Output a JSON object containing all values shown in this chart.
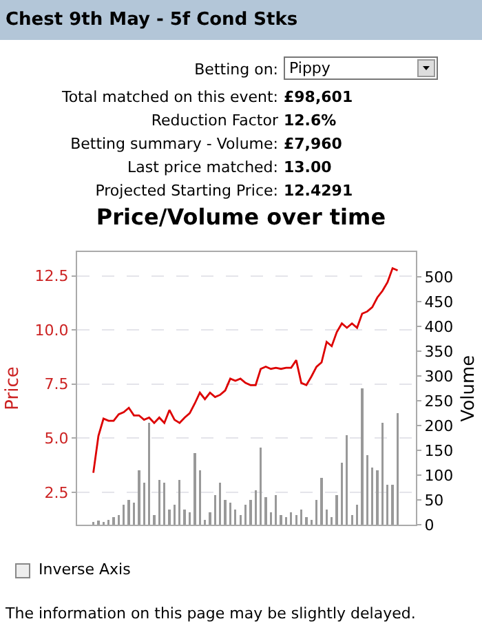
{
  "chart_data": {
    "type": "line",
    "title": "Price/Volume over time",
    "ylabel": "Price",
    "y2label": "Volume",
    "annotations": [
      "Chest 9th May - 5f Cond Stks",
      "Betting on:",
      "Pippy",
      "Total matched on this event:",
      "£98,601",
      "Reduction Factor",
      "12.6%",
      "Betting summary - Volume:",
      "£7,960",
      "Last price matched:",
      "13.00",
      "Projected Starting Price:",
      "12.4291",
      "Inverse Axis",
      "The information on this page may be slightly delayed."
    ],
    "categories": [
      null,
      null,
      null,
      null,
      null,
      null,
      null,
      null,
      null,
      null,
      null,
      null,
      null,
      null,
      null,
      null,
      null,
      null,
      null,
      null,
      null,
      null,
      null,
      null,
      null,
      null,
      null,
      null,
      null,
      null,
      null,
      null,
      null,
      null,
      null,
      null,
      null,
      null,
      null,
      null,
      null,
      null,
      null,
      null,
      null,
      null,
      null,
      null,
      null,
      null,
      null,
      null,
      null,
      null,
      null,
      null,
      null,
      null,
      null,
      null,
      null
    ],
    "series": [
      {
        "type": "bar",
        "axis": "y2",
        "color": "#999999",
        "values": [
          5,
          8,
          5,
          10,
          15,
          20,
          40,
          50,
          45,
          110,
          85,
          205,
          20,
          90,
          85,
          30,
          40,
          90,
          30,
          25,
          145,
          110,
          10,
          25,
          60,
          85,
          50,
          45,
          30,
          20,
          40,
          50,
          70,
          155,
          55,
          25,
          60,
          20,
          15,
          25,
          20,
          30,
          15,
          10,
          50,
          95,
          30,
          15,
          60,
          125,
          180,
          20,
          40,
          275,
          140,
          115,
          110,
          205,
          80,
          80,
          225
        ]
      },
      {
        "color": "#dd0000",
        "values": [
          3.4,
          5.1,
          5.9,
          5.8,
          5.8,
          6.1,
          6.2,
          6.4,
          6.05,
          6.05,
          5.85,
          5.95,
          5.7,
          5.95,
          5.7,
          6.3,
          5.85,
          5.7,
          5.95,
          6.15,
          6.6,
          7.1,
          6.8,
          7.1,
          6.9,
          7.0,
          7.2,
          7.75,
          7.65,
          7.75,
          7.55,
          7.45,
          7.45,
          8.2,
          8.3,
          8.2,
          8.25,
          8.2,
          8.25,
          8.25,
          8.6,
          7.55,
          7.45,
          7.85,
          8.3,
          8.5,
          9.45,
          9.25,
          9.9,
          10.3,
          10.1,
          10.3,
          10.1,
          10.75,
          10.85,
          11.05,
          11.5,
          11.8,
          12.2,
          12.85,
          12.75
        ]
      }
    ],
    "ylim": [
      1,
      13.6
    ],
    "yticks": [
      {
        "value": 2.5,
        "label": "2.5"
      },
      {
        "value": 5,
        "label": "5.0"
      },
      {
        "value": 7.5,
        "label": "7.5"
      },
      {
        "value": 10,
        "label": "10.0"
      },
      {
        "value": 12.5,
        "label": "12.5"
      }
    ],
    "y2lim": [
      0,
      550
    ],
    "y2ticks": [
      0,
      50,
      100,
      150,
      200,
      250,
      300,
      350,
      400,
      450,
      500
    ],
    "grid": "y",
    "tick_labels": "y",
    "marker": "none",
    "line_style": "solid"
  }
}
